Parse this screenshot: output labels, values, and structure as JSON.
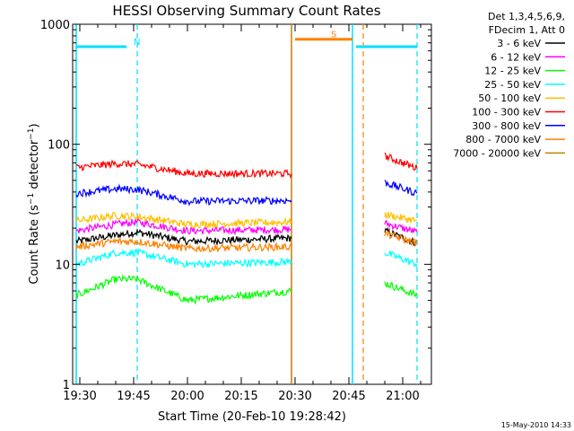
{
  "chart_data": {
    "type": "line",
    "title": "HESSI Observing Summary Count Rates",
    "xlabel": "Start Time (20-Feb-10 19:28:42)",
    "ylabel": "Count Rate (s⁻¹ detector⁻¹)",
    "yscale": "log",
    "xlim": [
      "19:28",
      "21:08"
    ],
    "ylim": [
      1,
      1000
    ],
    "x_ticks": [
      "19:30",
      "19:45",
      "20:00",
      "20:15",
      "20:30",
      "20:45",
      "21:00"
    ],
    "y_ticks": [
      "1",
      "10",
      "100",
      "1000"
    ],
    "legend_position": "top-right outside",
    "legend_header": [
      "Det 1,3,4,5,6,9,",
      "FDecim 1, Att 0"
    ],
    "series": [
      {
        "name": "3 - 6 keV",
        "color": "#000000",
        "x": [
          "19:29",
          "19:40",
          "19:46",
          "20:00",
          "20:29",
          "20:30",
          "20:55",
          "21:04"
        ],
        "y": [
          15.5,
          17.5,
          18.5,
          15.5,
          16.5,
          null,
          19,
          15
        ]
      },
      {
        "name": "6 - 12 keV",
        "color": "#ff00ff",
        "x": [
          "19:29",
          "19:40",
          "19:46",
          "20:00",
          "20:29",
          "20:30",
          "20:55",
          "21:04"
        ],
        "y": [
          19,
          21.5,
          22.5,
          19,
          19.5,
          null,
          22,
          18.5
        ]
      },
      {
        "name": "12 - 25 keV",
        "color": "#00ff00",
        "x": [
          "19:29",
          "19:40",
          "19:46",
          "20:00",
          "20:29",
          "20:30",
          "20:55",
          "21:04"
        ],
        "y": [
          5.5,
          7.5,
          7.5,
          5,
          6,
          null,
          7,
          5.5
        ]
      },
      {
        "name": "25 - 50 keV",
        "color": "#00ffff",
        "x": [
          "19:29",
          "19:40",
          "19:46",
          "20:00",
          "20:29",
          "20:30",
          "20:55",
          "21:04"
        ],
        "y": [
          10,
          12.5,
          12.5,
          10,
          10.5,
          null,
          12.5,
          10
        ]
      },
      {
        "name": "50 - 100 keV",
        "color": "#ffc000",
        "x": [
          "19:29",
          "19:40",
          "19:46",
          "20:00",
          "20:29",
          "20:30",
          "20:55",
          "21:04"
        ],
        "y": [
          23,
          25.5,
          25,
          21.5,
          22.5,
          null,
          26,
          23
        ]
      },
      {
        "name": "100 - 300 keV",
        "color": "#ff0000",
        "x": [
          "19:29",
          "19:40",
          "19:46",
          "20:00",
          "20:29",
          "20:30",
          "20:55",
          "21:04"
        ],
        "y": [
          64,
          69,
          68,
          57,
          57,
          null,
          80,
          63
        ]
      },
      {
        "name": "300 - 800 keV",
        "color": "#0000ff",
        "x": [
          "19:29",
          "19:40",
          "19:46",
          "20:00",
          "20:29",
          "20:30",
          "20:55",
          "21:04"
        ],
        "y": [
          39,
          42.5,
          42,
          33.5,
          34,
          null,
          48,
          39
        ]
      },
      {
        "name": "800 - 7000 keV",
        "color": "#ff8000",
        "x": [
          "19:29",
          "19:40",
          "19:46",
          "20:00",
          "20:29",
          "20:30",
          "20:55",
          "21:04"
        ],
        "y": [
          14,
          15.5,
          15.5,
          13.5,
          14,
          null,
          18,
          15
        ]
      },
      {
        "name": "7000 - 20000 keV",
        "color": "#c08000",
        "x": [],
        "y": []
      }
    ],
    "state_bars": [
      {
        "label": "N",
        "color": "#00e0ff",
        "level": 650,
        "segments": [
          [
            "19:29",
            "19:43"
          ],
          [
            "20:47",
            "21:04"
          ]
        ]
      },
      {
        "label": "S",
        "color": "#ff8000",
        "level": 750,
        "segments": [
          [
            "20:30",
            "20:46"
          ]
        ]
      }
    ],
    "vlines": [
      {
        "x": "19:29",
        "color": "#00e0ff",
        "style": "solid"
      },
      {
        "x": "19:46",
        "color": "#00e0ff",
        "style": "dashed"
      },
      {
        "x": "20:29",
        "color": "#c08000",
        "style": "solid"
      },
      {
        "x": "20:46",
        "color": "#00e0ff",
        "style": "solid"
      },
      {
        "x": "20:49",
        "color": "#ff8000",
        "style": "dashed"
      },
      {
        "x": "21:04",
        "color": "#00e0ff",
        "style": "dashed"
      }
    ]
  },
  "footer_date": "15-May-2010 14:33"
}
